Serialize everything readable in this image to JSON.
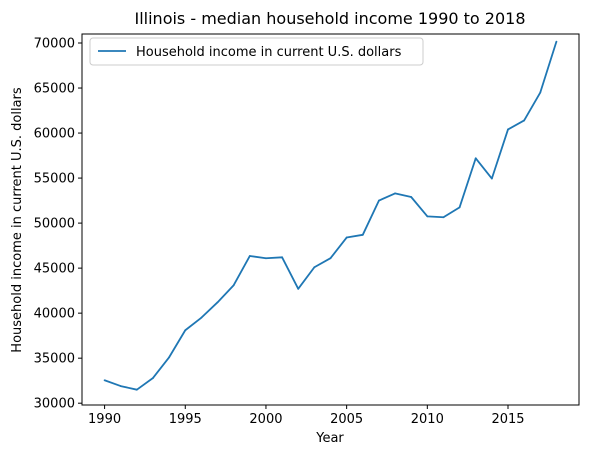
{
  "chart_data": {
    "type": "line",
    "title": "Illinois - median household income 1990 to 2018",
    "xlabel": "Year",
    "ylabel": "Household income in current U.S. dollars",
    "xlim": [
      1988.6,
      2019.4
    ],
    "ylim": [
      29800,
      71000
    ],
    "x_ticks": [
      1990,
      1995,
      2000,
      2005,
      2010,
      2015
    ],
    "y_ticks": [
      30000,
      35000,
      40000,
      45000,
      50000,
      55000,
      60000,
      65000,
      70000
    ],
    "grid": false,
    "legend_position": "upper-left",
    "series": [
      {
        "name": "Household income in current U.S. dollars",
        "color": "#1f77b4",
        "x": [
          1990,
          1991,
          1992,
          1993,
          1994,
          1995,
          1996,
          1997,
          1998,
          1999,
          2000,
          2001,
          2002,
          2003,
          2004,
          2005,
          2006,
          2007,
          2008,
          2009,
          2010,
          2011,
          2012,
          2013,
          2014,
          2015,
          2016,
          2017,
          2018
        ],
        "y": [
          32550,
          31900,
          31500,
          32800,
          35100,
          38100,
          39500,
          41200,
          43100,
          46350,
          46100,
          46200,
          42700,
          45100,
          46100,
          48400,
          48700,
          52500,
          53300,
          52900,
          50750,
          50650,
          51750,
          57200,
          54950,
          60400,
          61400,
          64500,
          70150
        ]
      }
    ]
  }
}
